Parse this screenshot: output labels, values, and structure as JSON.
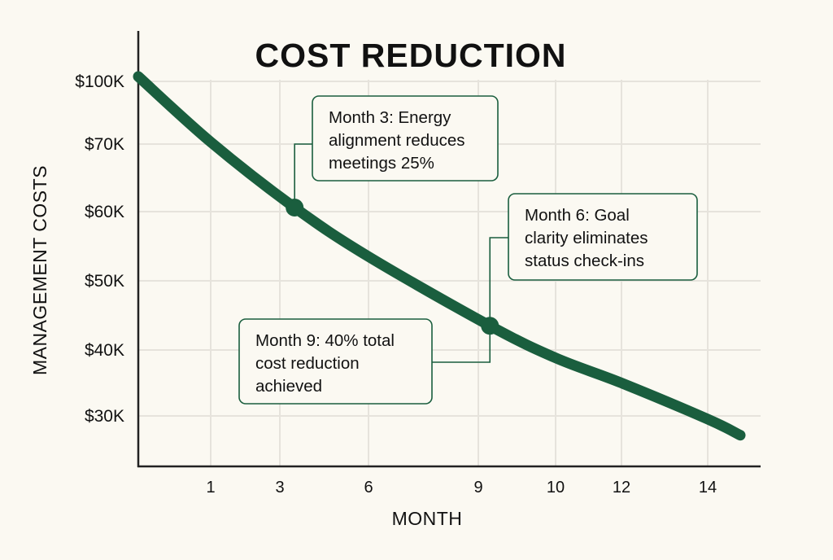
{
  "chart_data": {
    "type": "line",
    "title": "COST REDUCTION",
    "xlabel": "MONTH",
    "ylabel": "MANAGEMENT COSTS",
    "x_ticks": [
      1,
      3,
      6,
      9,
      10,
      12,
      14
    ],
    "x_tick_labels": [
      "1",
      "3",
      "6",
      "9",
      "10",
      "12",
      "14"
    ],
    "y_ticks": [
      30,
      40,
      50,
      60,
      70,
      100
    ],
    "y_tick_labels": [
      "$30K",
      "$40K",
      "$50K",
      "$60K",
      "$70K",
      "$100K"
    ],
    "y_units": "thousands of dollars",
    "grid": true,
    "series": [
      {
        "x": [
          0,
          1,
          3.5,
          6,
          9.15,
          10,
          12,
          14,
          15
        ],
        "y": [
          102,
          71,
          60.6,
          53.5,
          43.5,
          38.8,
          35,
          29.5,
          27
        ]
      }
    ],
    "annotations": [
      {
        "x": 3.5,
        "y": 60.6,
        "lines": [
          "Month 3: Energy",
          "alignment reduces",
          "meetings 25%"
        ]
      },
      {
        "x": 9.15,
        "y": 43.5,
        "lines": [
          "Month 6: Goal",
          "clarity eliminates",
          "status check-ins"
        ]
      },
      {
        "x": 9.15,
        "y": 43.5,
        "lines": [
          "Month 9: 40% total",
          "cost reduction",
          "achieved"
        ]
      }
    ],
    "colors": {
      "line": "#1a5e3e",
      "background": "#fbf9f2",
      "grid": "#e6e3dc",
      "text": "#111111"
    }
  }
}
